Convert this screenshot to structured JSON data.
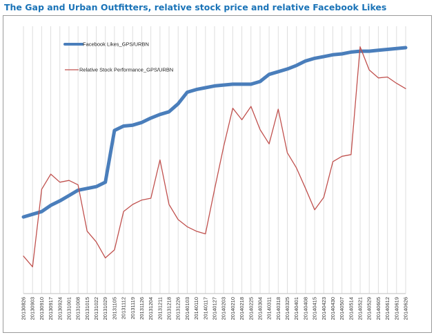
{
  "chart_data": {
    "type": "line",
    "title": "The Gap and Urban Outfitters, relative stock price and relative Facebook Likes",
    "xlabel": "",
    "ylabel": "",
    "grid": "vertical gridlines on",
    "legend_placement": "top-left",
    "categories": [
      "20130826",
      "20130903",
      "20130910",
      "20130917",
      "20130924",
      "20131001",
      "20131008",
      "20131015",
      "20131022",
      "20131029",
      "20131105",
      "20131112",
      "20131119",
      "20131126",
      "20131204",
      "20131211",
      "20131218",
      "20131226",
      "20140103",
      "20140110",
      "20140117",
      "20140127",
      "20140203",
      "20140210",
      "20140218",
      "20140225",
      "20140304",
      "20140311",
      "20140318",
      "20140325",
      "20140401",
      "20140408",
      "20140415",
      "20140423",
      "20140430",
      "20140507",
      "20140514",
      "20140521",
      "20140529",
      "20140605",
      "20140612",
      "20140619",
      "20140626"
    ],
    "series": [
      {
        "name": "Facebook Likes_GPS/URBN",
        "color": "#4a7ebb",
        "style": "thick",
        "values": [
          16,
          19,
          22,
          29,
          34,
          40,
          46,
          48,
          50,
          55,
          113,
          118,
          119,
          122,
          127,
          131,
          134,
          143,
          156,
          159,
          161,
          163,
          164,
          165,
          165,
          165,
          168,
          176,
          179,
          182,
          186,
          191,
          194,
          196,
          198,
          199,
          201,
          202,
          202,
          203,
          204,
          205,
          206
        ]
      },
      {
        "name": "Relative Stock Performance_GPS/URBN",
        "color": "#c0504d",
        "style": "thin",
        "values": [
          -28,
          -40,
          47,
          64,
          55,
          57,
          52,
          0,
          -12,
          -30,
          -21,
          22,
          30,
          35,
          37,
          80,
          30,
          13,
          5,
          0,
          -3,
          47,
          95,
          138,
          125,
          140,
          114,
          98,
          137,
          88,
          71,
          48,
          24,
          38,
          78,
          84,
          86,
          207,
          181,
          172,
          173,
          166,
          160
        ]
      }
    ]
  }
}
